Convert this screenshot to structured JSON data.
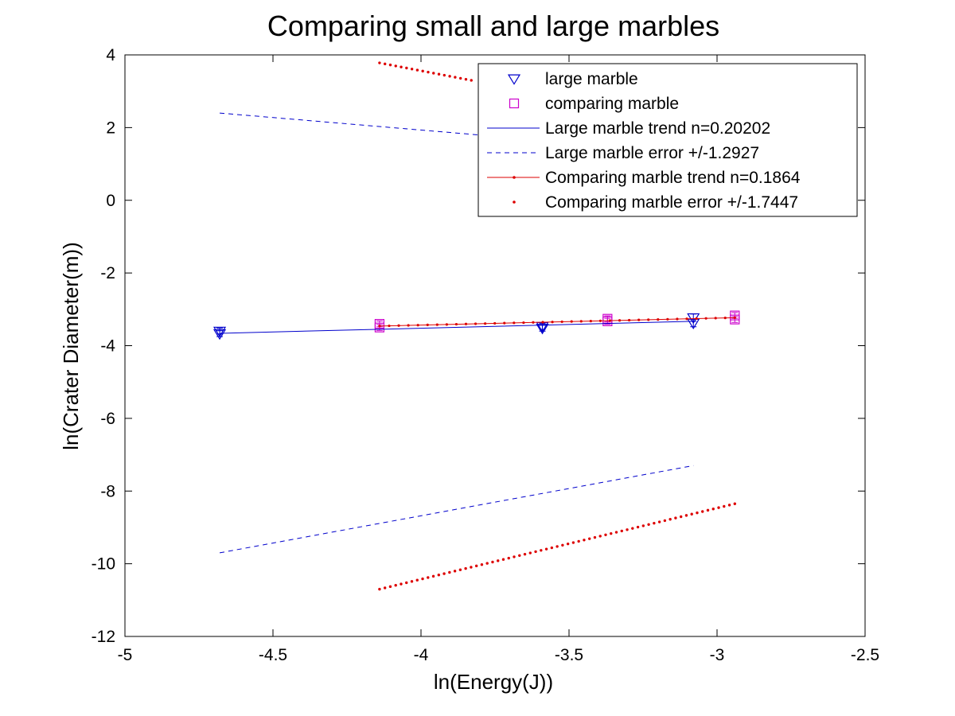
{
  "chart_data": {
    "type": "scatter",
    "title": "Comparing small and large marbles",
    "xlabel": "ln(Energy(J))",
    "ylabel": "ln(Crater Diameter(m))",
    "xlim": [
      -5,
      -2.5
    ],
    "ylim": [
      -12,
      4
    ],
    "xticks": [
      -5,
      -4.5,
      -4,
      -3.5,
      -3,
      -2.5
    ],
    "yticks": [
      -12,
      -10,
      -8,
      -6,
      -4,
      -2,
      0,
      2,
      4
    ],
    "grid": false,
    "legend_position": "top-right",
    "series": [
      {
        "name": "large marble",
        "kind": "markers",
        "marker": "triangle-down",
        "color": "#0000cc",
        "error_bars": true,
        "points": [
          {
            "x": -4.68,
            "y": -3.6,
            "err": 0.08
          },
          {
            "x": -4.68,
            "y": -3.67,
            "err": 0.08
          },
          {
            "x": -3.59,
            "y": -3.47,
            "err": 0.08
          },
          {
            "x": -3.59,
            "y": -3.52,
            "err": 0.08
          },
          {
            "x": -3.08,
            "y": -3.23,
            "err": 0.1
          },
          {
            "x": -3.08,
            "y": -3.38,
            "err": 0.1
          }
        ]
      },
      {
        "name": "comparing marble",
        "kind": "markers",
        "marker": "square",
        "color": "#cc00cc",
        "error_bars": true,
        "points": [
          {
            "x": -4.14,
            "y": -3.4,
            "err": 0.08
          },
          {
            "x": -4.14,
            "y": -3.5,
            "err": 0.08
          },
          {
            "x": -3.37,
            "y": -3.26,
            "err": 0.08
          },
          {
            "x": -3.37,
            "y": -3.33,
            "err": 0.08
          },
          {
            "x": -2.94,
            "y": -3.17,
            "err": 0.08
          },
          {
            "x": -2.94,
            "y": -3.28,
            "err": 0.08
          }
        ]
      },
      {
        "name": "Large marble trend n=0.20202",
        "kind": "line",
        "line_style": "solid",
        "color": "#0000cc",
        "x": [
          -4.68,
          -3.08
        ],
        "y": [
          -3.66,
          -3.33
        ]
      },
      {
        "name": "Large marble error +/-1.2927",
        "kind": "line",
        "line_style": "dashed",
        "color": "#0000cc",
        "segments": [
          {
            "x": [
              -4.68,
              -3.08
            ],
            "y": [
              2.4,
              1.3
            ]
          },
          {
            "x": [
              -4.68,
              -3.08
            ],
            "y": [
              -9.7,
              -7.3
            ]
          }
        ]
      },
      {
        "name": "Comparing marble trend n=0.1864",
        "kind": "line",
        "line_style": "solid-dotted",
        "color": "#dd0000",
        "x": [
          -4.14,
          -2.94
        ],
        "y": [
          -3.46,
          -3.23
        ]
      },
      {
        "name": "Comparing marble error +/-1.7447",
        "kind": "line",
        "line_style": "dotted",
        "color": "#dd0000",
        "segments": [
          {
            "x": [
              -4.14,
              -3.83
            ],
            "y": [
              3.78,
              3.3
            ]
          },
          {
            "x": [
              -4.14,
              -2.94
            ],
            "y": [
              -10.7,
              -8.35
            ]
          }
        ]
      }
    ]
  }
}
